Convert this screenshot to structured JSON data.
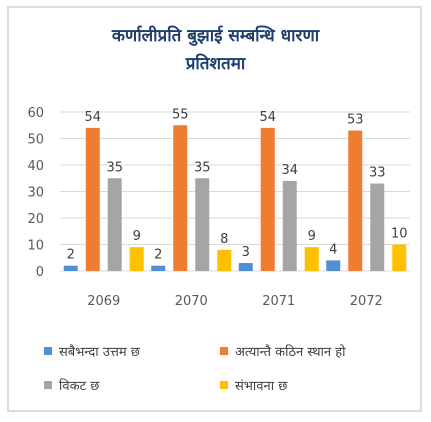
{
  "chart_data": {
    "type": "bar",
    "title": "कर्णालीप्रति बुझाई सम्बन्धि धारणा",
    "subtitle": "प्रतिशतमा",
    "categories": [
      "2069",
      "2070",
      "2071",
      "2072"
    ],
    "series": [
      {
        "name": "सबैभन्दा उत्तम छ",
        "values": [
          2,
          2,
          3,
          4
        ],
        "color": "#4f8fd4"
      },
      {
        "name": "अत्यान्तै कठिन स्थान हो",
        "values": [
          54,
          55,
          54,
          53
        ],
        "color": "#ee7d31"
      },
      {
        "name": "विकट छ",
        "values": [
          35,
          35,
          34,
          33
        ],
        "color": "#a5a5a5"
      },
      {
        "name": "संभावना छ",
        "values": [
          9,
          8,
          9,
          10
        ],
        "color": "#ffc000"
      }
    ],
    "ylim": [
      0,
      60
    ],
    "yticks": [
      0,
      10,
      20,
      30,
      40,
      50,
      60
    ],
    "grid": true,
    "legend_position": "bottom"
  }
}
